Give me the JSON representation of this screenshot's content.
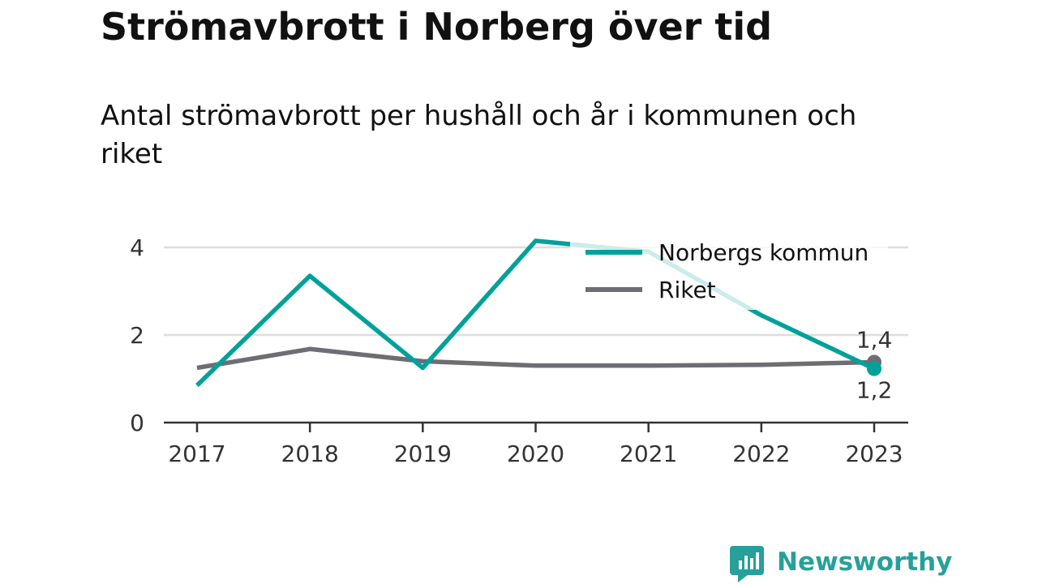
{
  "title": "Strömavbrott i Norberg över tid",
  "subtitle": "Antal strömavbrott per hushåll och år i kommunen och riket",
  "brand": {
    "name": "Newsworthy",
    "color": "#26a09a"
  },
  "chart_data": {
    "type": "line",
    "x": [
      "2017",
      "2018",
      "2019",
      "2020",
      "2021",
      "2022",
      "2023"
    ],
    "series": [
      {
        "name": "Norbergs kommun",
        "color": "#00a19a",
        "values": [
          0.85,
          3.35,
          1.25,
          4.15,
          3.9,
          2.45,
          1.23
        ],
        "end_label": "1,2"
      },
      {
        "name": "Riket",
        "color": "#6d6d74",
        "values": [
          1.25,
          1.68,
          1.4,
          1.3,
          1.3,
          1.32,
          1.38
        ],
        "end_label": "1,4"
      }
    ],
    "y_ticks": [
      "0",
      "2",
      "4"
    ],
    "y_tick_values": [
      0,
      2,
      4
    ],
    "ylim": [
      0,
      4.2
    ],
    "grid": true,
    "legend_position": "top-right"
  }
}
